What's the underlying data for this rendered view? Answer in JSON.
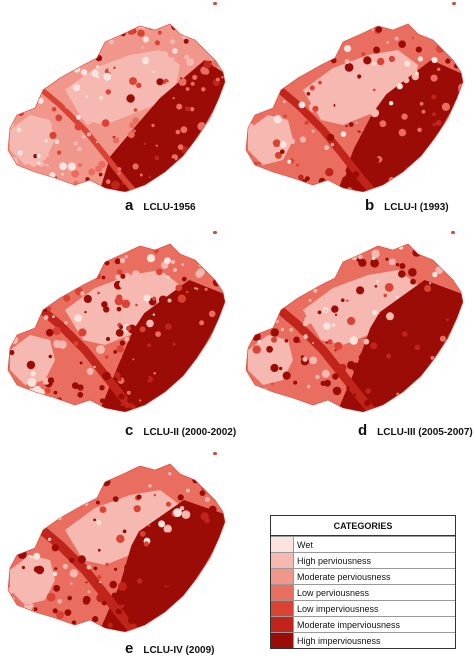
{
  "colors": {
    "wet": "#fbe3e0",
    "high_perviousness": "#f6b9b1",
    "moderate_perviousness": "#f1968a",
    "low_perviousness": "#e96e5f",
    "low_imperviousness": "#da4333",
    "moderate_imperviousness": "#c0241a",
    "high_imperviousness": "#9b0c07"
  },
  "panels": [
    {
      "letter": "a",
      "label": "LCLU-1956",
      "intensity": 0.25
    },
    {
      "letter": "b",
      "label": "LCLU-I (1993)",
      "intensity": 0.6
    },
    {
      "letter": "c",
      "label": "LCLU-II (2000-2002)",
      "intensity": 0.72
    },
    {
      "letter": "d",
      "label": "LCLU-III (2005-2007)",
      "intensity": 0.8
    },
    {
      "letter": "e",
      "label": "LCLU-IV (2009)",
      "intensity": 0.88
    }
  ],
  "legend": {
    "title": "CATEGORIES",
    "items": [
      {
        "label": "Wet",
        "color": "#fbe3e0"
      },
      {
        "label": "High perviousness",
        "color": "#f6b9b1"
      },
      {
        "label": "Moderate perviousness",
        "color": "#f1968a"
      },
      {
        "label": "Low perviousness",
        "color": "#e96e5f"
      },
      {
        "label": "Low imperviousness",
        "color": "#da4333"
      },
      {
        "label": "Moderate imperviousness",
        "color": "#c0241a"
      },
      {
        "label": "High imperviousness",
        "color": "#9b0c07"
      }
    ]
  }
}
